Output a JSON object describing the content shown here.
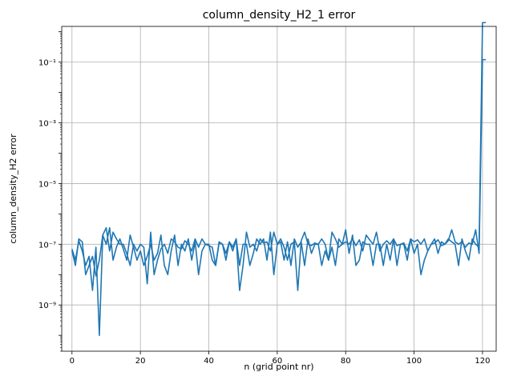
{
  "chart_data": {
    "type": "line",
    "title": "column_density_H2_1 error",
    "xlabel": "n (grid point nr)",
    "ylabel": "column_density_H2 error",
    "xlim": [
      -3,
      124
    ],
    "ylim": [
      3e-11,
      1.5
    ],
    "yscale": "log",
    "grid": true,
    "xticks": [
      0,
      20,
      40,
      60,
      80,
      100,
      120
    ],
    "yticks": [
      1e-09,
      1e-07,
      1e-05,
      0.001,
      0.1
    ],
    "ytick_labels": [
      "10⁻⁹",
      "10⁻⁷",
      "10⁻⁵",
      "10⁻³",
      "10⁻¹"
    ],
    "colors": {
      "series": "#1f77b4",
      "grid": "#b0b0b0"
    },
    "series": [
      {
        "x": [
          0,
          1,
          2,
          3,
          4,
          5,
          6,
          7,
          8,
          9,
          10,
          11,
          12,
          13,
          14,
          15,
          16,
          17,
          18,
          19,
          20,
          21,
          22,
          23,
          24,
          25,
          26,
          27,
          28,
          29,
          30,
          31,
          32,
          33,
          34,
          35,
          36,
          37,
          38,
          39,
          40,
          41,
          42,
          43,
          44,
          45,
          46,
          47,
          48,
          49,
          50,
          51,
          52,
          53,
          54,
          55,
          56,
          57,
          58,
          59,
          60,
          61,
          62,
          63,
          64,
          65,
          66,
          67,
          68,
          69,
          70,
          71,
          72,
          73,
          74,
          75,
          76,
          77,
          78,
          79,
          80,
          81,
          82,
          83,
          84,
          85,
          86,
          87,
          88,
          89,
          90,
          91,
          92,
          93,
          94,
          95,
          96,
          97,
          98,
          99,
          100,
          101,
          102,
          103,
          104,
          105,
          106,
          107,
          108,
          109,
          110,
          111,
          112,
          113,
          114,
          115,
          116,
          117,
          118,
          119,
          120,
          121
        ],
        "y": [
          7e-08,
          3e-08,
          1.3e-07,
          6e-08,
          2e-08,
          4e-08,
          3e-09,
          8e-08,
          1e-10,
          2e-07,
          3.5e-07,
          6e-08,
          2.5e-07,
          1.5e-07,
          1e-07,
          1e-07,
          5e-08,
          2e-08,
          1e-07,
          6e-08,
          1e-07,
          8e-08,
          5e-09,
          2.5e-07,
          1e-08,
          3e-08,
          7e-08,
          1e-07,
          5e-08,
          1.5e-07,
          1.2e-07,
          8e-08,
          7e-08,
          1.3e-07,
          1e-07,
          6e-08,
          1.5e-07,
          8e-08,
          1.5e-07,
          1e-07,
          9e-08,
          8e-08,
          2e-08,
          1.1e-07,
          1e-07,
          5e-08,
          1.2e-07,
          6e-08,
          1.5e-07,
          3e-09,
          2e-08,
          2.5e-07,
          8e-08,
          1e-07,
          6e-08,
          1.5e-07,
          1.1e-07,
          1.2e-07,
          6e-08,
          2.5e-07,
          1e-07,
          1.5e-07,
          8e-08,
          3e-08,
          1e-07,
          1.2e-07,
          3e-09,
          1.3e-07,
          2.5e-07,
          1e-07,
          9e-08,
          1.1e-07,
          1e-07,
          1.5e-07,
          1e-07,
          3e-08,
          2.5e-07,
          1.5e-07,
          8e-08,
          1e-07,
          1.2e-07,
          1e-07,
          1.5e-07,
          9e-08,
          1.4e-07,
          6e-08,
          2e-07,
          1.4e-07,
          1e-07,
          2.5e-07,
          6e-08,
          1e-07,
          1.3e-07,
          1e-07,
          1.5e-07,
          9e-08,
          1e-07,
          1.1e-07,
          6e-08,
          1.5e-07,
          1.2e-07,
          1.4e-07,
          1e-07,
          1.5e-07,
          6e-08,
          1e-07,
          1.1e-07,
          1.4e-07,
          9e-08,
          1e-07,
          1.3e-07,
          3e-07,
          1.2e-07,
          1e-07,
          1.2e-07,
          8e-08,
          1.1e-07,
          1e-07,
          3e-07,
          5e-08,
          0.12,
          0.12
        ]
      },
      {
        "x": [
          0,
          1,
          2,
          3,
          4,
          5,
          6,
          7,
          8,
          9,
          10,
          11,
          12,
          13,
          14,
          15,
          16,
          17,
          18,
          19,
          20,
          21,
          22,
          23,
          24,
          25,
          26,
          27,
          28,
          29,
          30,
          31,
          32,
          33,
          34,
          35,
          36,
          37,
          38,
          39,
          40,
          41,
          42,
          43,
          44,
          45,
          46,
          47,
          48,
          49,
          50,
          51,
          52,
          53,
          54,
          55,
          56,
          57,
          58,
          59,
          60,
          61,
          62,
          63,
          64,
          65,
          66,
          67,
          68,
          69,
          70,
          71,
          72,
          73,
          74,
          75,
          76,
          77,
          78,
          79,
          80,
          81,
          82,
          83,
          84,
          85,
          86,
          87,
          88,
          89,
          90,
          91,
          92,
          93,
          94,
          95,
          96,
          97,
          98,
          99,
          100,
          101,
          102,
          103,
          104,
          105,
          106,
          107,
          108,
          109,
          110,
          111,
          112,
          113,
          114,
          115,
          116,
          117,
          118,
          119,
          120,
          121
        ],
        "y": [
          6e-08,
          2e-08,
          1.5e-07,
          1.2e-07,
          1e-08,
          2e-08,
          4e-08,
          9e-09,
          3e-08,
          2e-07,
          1e-07,
          3.5e-07,
          3e-08,
          8e-08,
          1.5e-07,
          7e-08,
          3e-08,
          2e-07,
          8e-08,
          3e-08,
          6e-08,
          2e-08,
          4e-08,
          1e-07,
          3e-08,
          5e-08,
          2e-07,
          2e-08,
          1e-08,
          6e-08,
          2e-07,
          2e-08,
          1e-07,
          6e-08,
          1.5e-07,
          3e-08,
          1.2e-07,
          1e-08,
          6e-08,
          1e-07,
          1e-07,
          3e-08,
          2e-08,
          1.2e-07,
          1e-07,
          3e-08,
          1.2e-07,
          8e-08,
          1.5e-07,
          2e-08,
          1e-07,
          1e-07,
          2e-08,
          5e-08,
          1.5e-07,
          1e-07,
          1.5e-07,
          3e-08,
          2.5e-07,
          1e-08,
          1e-07,
          1.2e-07,
          3e-08,
          1.2e-07,
          2e-08,
          1.5e-07,
          8e-08,
          1.2e-07,
          2e-08,
          1.5e-07,
          5e-08,
          1e-07,
          1e-07,
          2e-08,
          6e-08,
          3e-08,
          8e-08,
          2e-08,
          1.5e-07,
          1e-07,
          3e-07,
          5e-08,
          2e-07,
          2e-08,
          3e-08,
          1.2e-07,
          1e-07,
          1e-07,
          2e-08,
          1e-07,
          1e-07,
          2e-08,
          1e-07,
          3e-08,
          1.5e-07,
          2e-08,
          1e-07,
          1e-07,
          3e-08,
          1.5e-07,
          5e-08,
          1e-07,
          1e-08,
          3e-08,
          6e-08,
          1e-07,
          1.5e-07,
          5e-08,
          1.2e-07,
          1e-07,
          1.5e-07,
          1.2e-07,
          1e-07,
          2e-08,
          1.5e-07,
          6e-08,
          3e-08,
          1.5e-07,
          1e-07,
          8e-08,
          2.0,
          2.0
        ]
      }
    ]
  }
}
